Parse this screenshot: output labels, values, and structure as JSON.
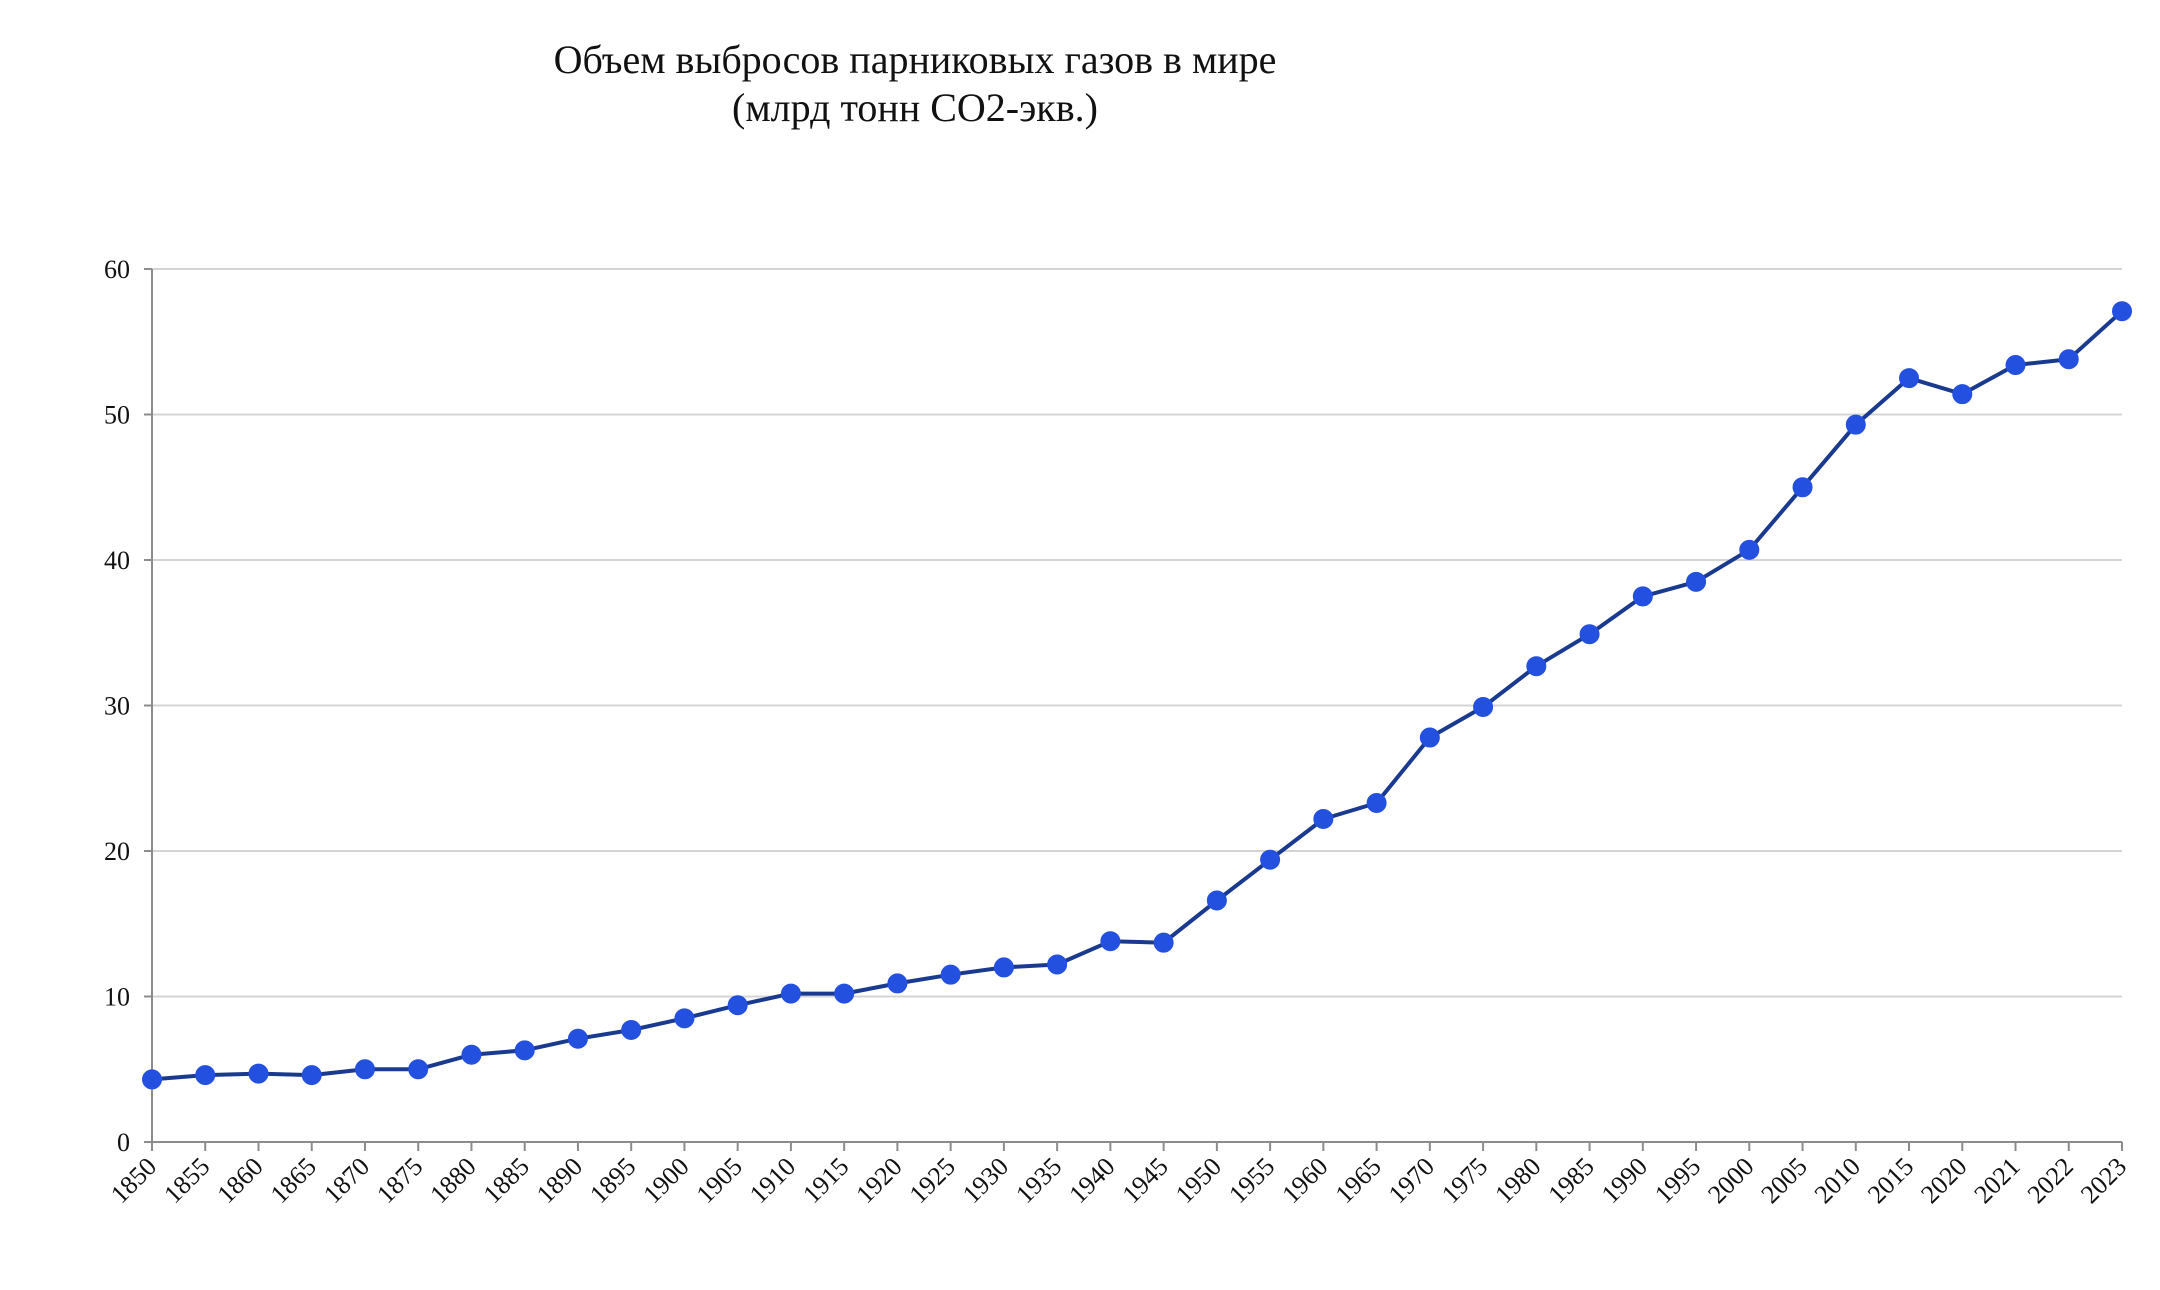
{
  "chart_data": {
    "type": "line",
    "title": "Объем выбросов парниковых газов в мире",
    "subtitle": "(млрд тонн СО2-экв.)",
    "xlabel": "",
    "ylabel": "",
    "ylim": [
      0,
      60
    ],
    "yticks": [
      "0",
      "10",
      "20",
      "30",
      "40",
      "50",
      "60"
    ],
    "grid": "horizontal",
    "legend": "none",
    "series_color": "#1a3a8f",
    "marker_color": "#2450e0",
    "grid_color": "#d4d4d4",
    "axis_color": "#8c8c8c",
    "categories": [
      "1850",
      "1855",
      "1860",
      "1865",
      "1870",
      "1875",
      "1880",
      "1885",
      "1890",
      "1895",
      "1900",
      "1905",
      "1910",
      "1915",
      "1920",
      "1925",
      "1930",
      "1935",
      "1940",
      "1945",
      "1950",
      "1955",
      "1960",
      "1965",
      "1970",
      "1975",
      "1980",
      "1985",
      "1990",
      "1995",
      "2000",
      "2005",
      "2010",
      "2015",
      "2020",
      "2021",
      "2022",
      "2023"
    ],
    "values": [
      4.3,
      4.6,
      4.7,
      4.6,
      5.0,
      5.0,
      6.0,
      6.3,
      7.1,
      7.7,
      8.5,
      9.4,
      10.2,
      10.2,
      10.9,
      11.5,
      12.0,
      12.2,
      13.8,
      13.7,
      16.6,
      19.4,
      22.2,
      23.3,
      27.8,
      29.9,
      32.7,
      34.9,
      37.5,
      38.5,
      40.7,
      45.0,
      49.3,
      52.5,
      51.4,
      53.4,
      53.8,
      57.1
    ]
  }
}
